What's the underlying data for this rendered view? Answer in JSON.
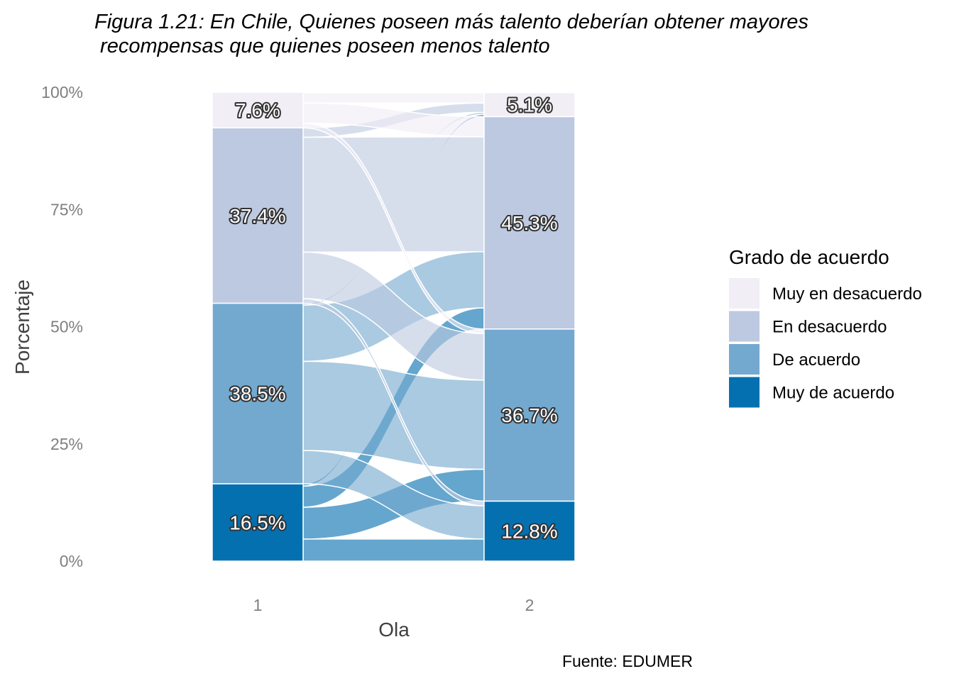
{
  "chart_data": {
    "type": "alluvial",
    "title": "Figura 1.21:  En Chile, Quienes poseen más talento deberían obtener mayores",
    "subtitle": " recompensas que quienes poseen menos talento",
    "xlabel": "Ola",
    "ylabel": "Porcentaje",
    "caption": "Fuente: EDUMER",
    "legend_title": "Grado de acuerdo",
    "legend_position": "right",
    "ylim": [
      0,
      100
    ],
    "y_ticks": [
      "0%",
      "25%",
      "50%",
      "75%",
      "100%"
    ],
    "categories": [
      "1",
      "2"
    ],
    "levels": [
      {
        "name": "Muy de acuerdo",
        "color": "#0570b0"
      },
      {
        "name": "De acuerdo",
        "color": "#74a9cf"
      },
      {
        "name": "En desacuerdo",
        "color": "#bdc9e1"
      },
      {
        "name": "Muy en desacuerdo",
        "color": "#f1eef6"
      }
    ],
    "series": [
      {
        "name": "Muy de acuerdo",
        "values": [
          16.5,
          12.8
        ],
        "labels": [
          "16.5%",
          "12.8%"
        ]
      },
      {
        "name": "De acuerdo",
        "values": [
          38.5,
          36.7
        ],
        "labels": [
          "38.5%",
          "36.7%"
        ]
      },
      {
        "name": "En desacuerdo",
        "values": [
          37.4,
          45.3
        ],
        "labels": [
          "37.4%",
          "45.3%"
        ]
      },
      {
        "name": "Muy en desacuerdo",
        "values": [
          7.6,
          5.1
        ],
        "labels": [
          "7.6%",
          "5.1%"
        ]
      }
    ],
    "flows": [
      {
        "from": "Muy de acuerdo",
        "to": "Muy de acuerdo",
        "value": 4.7
      },
      {
        "from": "Muy de acuerdo",
        "to": "De acuerdo",
        "value": 6.8
      },
      {
        "from": "Muy de acuerdo",
        "to": "En desacuerdo",
        "value": 4.5
      },
      {
        "from": "Muy de acuerdo",
        "to": "Muy en desacuerdo",
        "value": 0.5
      },
      {
        "from": "De acuerdo",
        "to": "Muy de acuerdo",
        "value": 7.1
      },
      {
        "from": "De acuerdo",
        "to": "De acuerdo",
        "value": 19.0
      },
      {
        "from": "De acuerdo",
        "to": "En desacuerdo",
        "value": 12.0
      },
      {
        "from": "De acuerdo",
        "to": "Muy en desacuerdo",
        "value": 0.4
      },
      {
        "from": "En desacuerdo",
        "to": "Muy de acuerdo",
        "value": 1.0
      },
      {
        "from": "En desacuerdo",
        "to": "De acuerdo",
        "value": 9.9
      },
      {
        "from": "En desacuerdo",
        "to": "En desacuerdo",
        "value": 24.5
      },
      {
        "from": "En desacuerdo",
        "to": "Muy en desacuerdo",
        "value": 2.0
      },
      {
        "from": "Muy en desacuerdo",
        "to": "Muy de acuerdo",
        "value": 0.0
      },
      {
        "from": "Muy en desacuerdo",
        "to": "De acuerdo",
        "value": 1.0
      },
      {
        "from": "Muy en desacuerdo",
        "to": "En desacuerdo",
        "value": 4.3
      },
      {
        "from": "Muy en desacuerdo",
        "to": "Muy en desacuerdo",
        "value": 2.2
      }
    ]
  }
}
